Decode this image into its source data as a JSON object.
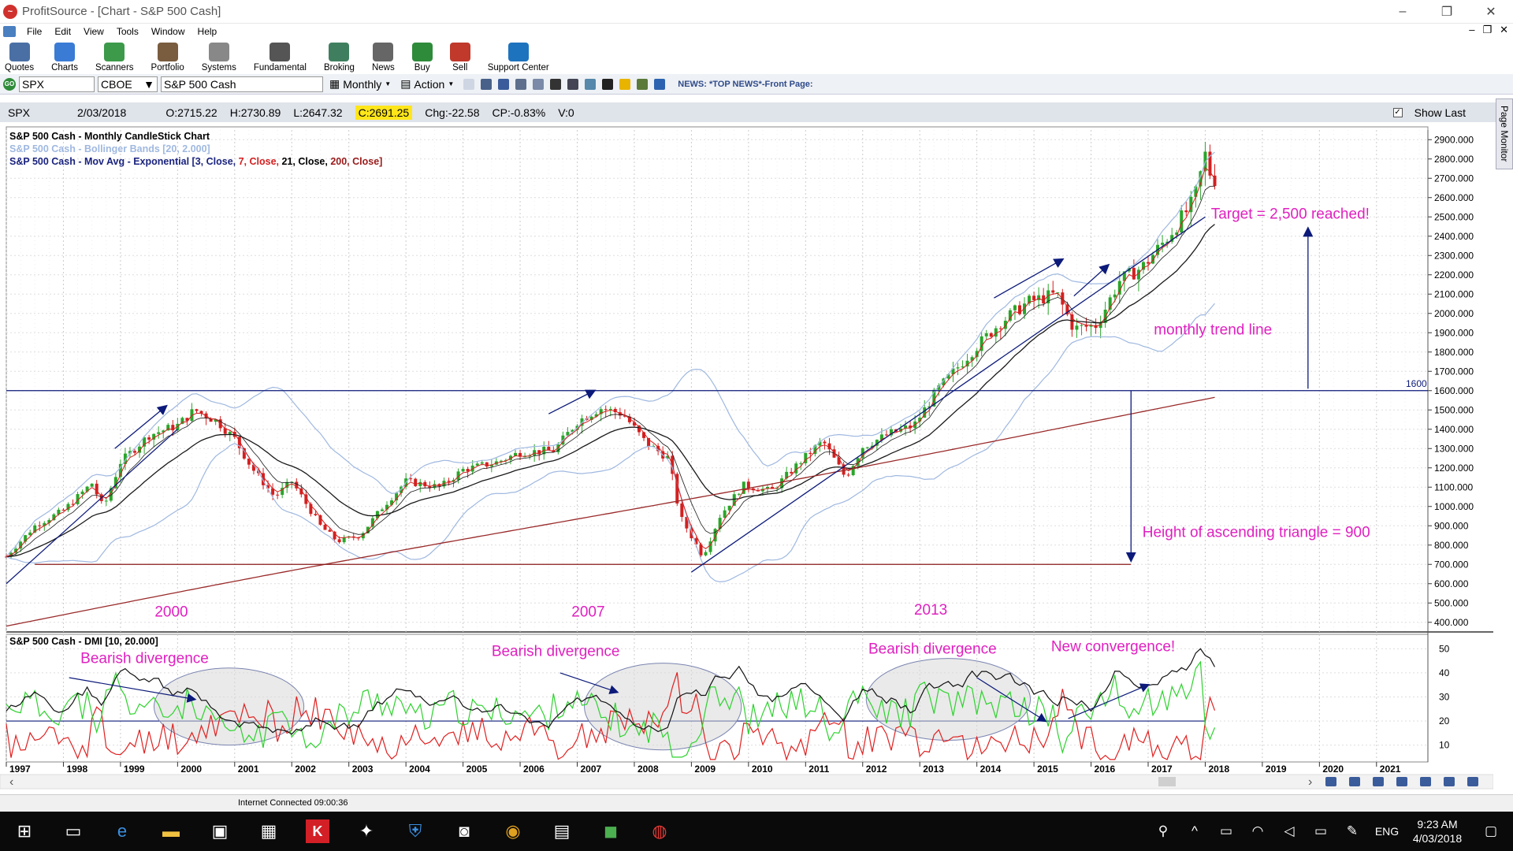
{
  "window": {
    "title": "ProfitSource - [Chart - S&P 500 Cash]",
    "controls": [
      "–",
      "❐",
      "✕"
    ]
  },
  "menu": [
    "File",
    "Edit",
    "View",
    "Tools",
    "Window",
    "Help"
  ],
  "toolbar": {
    "buttons": [
      {
        "label": "Quotes",
        "icon": "quotes-icon",
        "color": "#4a6fa5"
      },
      {
        "label": "Charts",
        "icon": "charts-icon",
        "color": "#3a7bd5"
      },
      {
        "label": "Scanners",
        "icon": "scanners-icon",
        "color": "#3c9a4a"
      },
      {
        "label": "Portfolio",
        "icon": "portfolio-icon",
        "color": "#7a5c3e"
      },
      {
        "label": "Systems",
        "icon": "systems-icon",
        "color": "#888888"
      },
      {
        "label": "Fundamental",
        "icon": "fundamental-icon",
        "color": "#555555"
      },
      {
        "label": "Broking",
        "icon": "broking-icon",
        "color": "#3f7f5f"
      },
      {
        "label": "News",
        "icon": "news-icon",
        "color": "#666666"
      },
      {
        "label": "Buy",
        "icon": "buy-icon",
        "color": "#2e8b3a"
      },
      {
        "label": "Sell",
        "icon": "sell-icon",
        "color": "#c0392b"
      },
      {
        "label": "Support Center",
        "icon": "help-icon",
        "color": "#1e73be"
      }
    ]
  },
  "symbolbar": {
    "symbol": "SPX",
    "exchange": "CBOE",
    "name": "S&P 500 Cash",
    "period": "Monthly",
    "action": "Action",
    "news": "NEWS: *TOP NEWS*-Front Page:"
  },
  "info": {
    "symbol": "SPX",
    "date": "2/03/2018",
    "open": "O:2715.22",
    "high": "H:2730.89",
    "low": "L:2647.32",
    "close": "C:2691.25",
    "change": "Chg:-22.58",
    "change_pct": "CP:-0.83%",
    "volume": "V:0",
    "show_last": "Show Last"
  },
  "page_monitor": "Page Monitor",
  "chart_data": {
    "type": "candlestick",
    "legend": {
      "line1": "S&P 500 Cash - Monthly CandleStick Chart",
      "line2": "S&P 500 Cash - Bollinger Bands [20, 2.000]",
      "line3_prefix": "S&P 500 Cash - Mov Avg - Exponential",
      "ma_params": [
        "[3, Close,",
        "7, Close,",
        "21, Close,",
        "200, Close]"
      ]
    },
    "price_axis": [
      "2900.000",
      "2800.000",
      "2700.000",
      "2600.000",
      "2500.000",
      "2400.000",
      "2300.000",
      "2200.000",
      "2100.000",
      "2000.000",
      "1900.000",
      "1800.000",
      "1700.000",
      "1600.000",
      "1500.000",
      "1400.000",
      "1300.000",
      "1200.000",
      "1100.000",
      "1000.000",
      "900.000",
      "800.000",
      "700.000",
      "600.000",
      "500.000",
      "400.000"
    ],
    "ylim": [
      350,
      2950
    ],
    "xlim": [
      1997.0,
      2021.9
    ],
    "approx_close_path": [
      [
        1997.0,
        740
      ],
      [
        1997.5,
        900
      ],
      [
        1998.0,
        980
      ],
      [
        1998.5,
        1120
      ],
      [
        1998.7,
        990
      ],
      [
        1999.0,
        1230
      ],
      [
        1999.5,
        1370
      ],
      [
        2000.0,
        1420
      ],
      [
        2000.3,
        1500
      ],
      [
        2000.7,
        1440
      ],
      [
        2001.0,
        1350
      ],
      [
        2001.3,
        1200
      ],
      [
        2001.7,
        1050
      ],
      [
        2002.0,
        1130
      ],
      [
        2002.5,
        900
      ],
      [
        2002.8,
        820
      ],
      [
        2003.2,
        850
      ],
      [
        2003.6,
        1000
      ],
      [
        2004.0,
        1130
      ],
      [
        2004.6,
        1100
      ],
      [
        2005.0,
        1190
      ],
      [
        2005.6,
        1230
      ],
      [
        2006.0,
        1280
      ],
      [
        2006.6,
        1290
      ],
      [
        2007.0,
        1440
      ],
      [
        2007.4,
        1510
      ],
      [
        2007.8,
        1480
      ],
      [
        2008.2,
        1330
      ],
      [
        2008.6,
        1250
      ],
      [
        2008.8,
        950
      ],
      [
        2009.2,
        740
      ],
      [
        2009.5,
        950
      ],
      [
        2009.9,
        1110
      ],
      [
        2010.4,
        1080
      ],
      [
        2010.9,
        1230
      ],
      [
        2011.3,
        1340
      ],
      [
        2011.7,
        1150
      ],
      [
        2012.0,
        1310
      ],
      [
        2012.5,
        1380
      ],
      [
        2012.9,
        1420
      ],
      [
        2013.3,
        1600
      ],
      [
        2013.9,
        1800
      ],
      [
        2014.4,
        1950
      ],
      [
        2014.9,
        2060
      ],
      [
        2015.4,
        2100
      ],
      [
        2015.7,
        1920
      ],
      [
        2016.1,
        1940
      ],
      [
        2016.5,
        2170
      ],
      [
        2016.9,
        2240
      ],
      [
        2017.3,
        2380
      ],
      [
        2017.8,
        2580
      ],
      [
        2018.0,
        2820
      ],
      [
        2018.1,
        2710
      ],
      [
        2018.2,
        2691
      ]
    ],
    "horizontal_line_label": "1600",
    "annotations": {
      "target": "Target = 2,500 reached!",
      "trend": "monthly trend line",
      "height": "Height of ascending triangle = 900",
      "year_2000": "2000",
      "year_2007": "2007",
      "year_2013": "2013"
    },
    "dmi": {
      "title": "S&P 500 Cash - DMI [10, 20.000]",
      "axis": [
        "50",
        "40",
        "30",
        "20",
        "10"
      ],
      "ylim": [
        3,
        56
      ],
      "threshold": 20,
      "labels": {
        "div1": "Bearish divergence",
        "div2": "Bearish divergence",
        "div3": "Bearish divergence",
        "conv": "New convergence!"
      }
    },
    "x_axis": [
      "1997",
      "1998",
      "1999",
      "2000",
      "2001",
      "2002",
      "2003",
      "2004",
      "2005",
      "2006",
      "2007",
      "2008",
      "2009",
      "2010",
      "2011",
      "2012",
      "2013",
      "2014",
      "2015",
      "2016",
      "2017",
      "2018",
      "2019",
      "2020",
      "2021"
    ],
    "colors": {
      "bull": "#2aa52a",
      "bear": "#d32020",
      "ema3": "#d32020",
      "ema7": "#1a1a1a",
      "ema21": "#1a1a1a",
      "ema200": "#9a2a2a",
      "bollinger": "#9fb8e0",
      "annotation": "#e020c0",
      "arrow": "#0c1a7a",
      "plus_di": "#2dd22d",
      "minus_di": "#e02020",
      "adx": "#111111"
    }
  },
  "status": "Internet Connected 09:00:36",
  "taskbar": {
    "clock_time": "9:23 AM",
    "clock_date": "4/03/2018",
    "lang": "ENG"
  }
}
